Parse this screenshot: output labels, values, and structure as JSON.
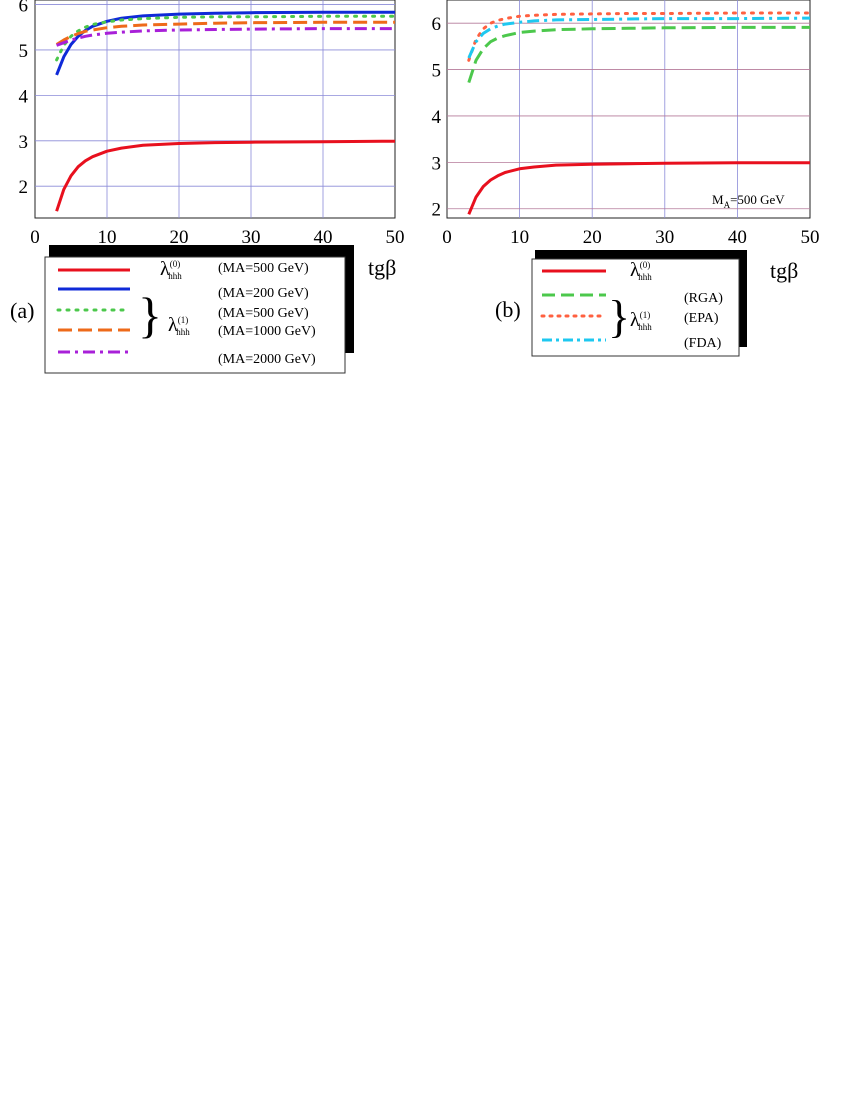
{
  "chart_data": [
    {
      "panel_label": "(a)",
      "type": "line",
      "xlabel": "tgβ",
      "xlim": [
        0,
        50
      ],
      "ylim": [
        1.3,
        6.1
      ],
      "xticks": [
        "0",
        "10",
        "20",
        "30",
        "40",
        "50"
      ],
      "yticks": [
        "2",
        "3",
        "4",
        "5",
        "6"
      ],
      "grid": true,
      "series": [
        {
          "name": "λhhh(0) (MA=500 GeV)",
          "color": "#e8101e",
          "dash": "solid",
          "x": [
            3,
            4,
            5,
            6,
            7,
            8,
            10,
            12,
            15,
            20,
            25,
            30,
            40,
            50
          ],
          "y": [
            1.45,
            1.93,
            2.23,
            2.43,
            2.56,
            2.65,
            2.77,
            2.84,
            2.9,
            2.94,
            2.96,
            2.97,
            2.98,
            2.99
          ]
        },
        {
          "name": "λhhh(1) (MA=200 GeV)",
          "color": "#0f2ad8",
          "dash": "solid",
          "x": [
            3,
            4,
            5,
            6,
            7,
            8,
            10,
            12,
            15,
            20,
            25,
            30,
            40,
            50
          ],
          "y": [
            4.45,
            4.85,
            5.12,
            5.3,
            5.43,
            5.52,
            5.63,
            5.7,
            5.75,
            5.79,
            5.81,
            5.82,
            5.83,
            5.83
          ]
        },
        {
          "name": "λhhh(1) (MA=500 GeV)",
          "color": "#4cc84c",
          "dash": "dot",
          "x": [
            3,
            4,
            5,
            6,
            7,
            8,
            10,
            12,
            15,
            20,
            25,
            30,
            40,
            50
          ],
          "y": [
            4.78,
            5.1,
            5.3,
            5.42,
            5.5,
            5.56,
            5.62,
            5.66,
            5.69,
            5.72,
            5.73,
            5.73,
            5.74,
            5.74
          ]
        },
        {
          "name": "λhhh(1) (MA=1000 GeV)",
          "color": "#ee6a1a",
          "dash": "dash",
          "x": [
            3,
            4,
            5,
            6,
            7,
            8,
            10,
            12,
            15,
            20,
            25,
            30,
            40,
            50
          ],
          "y": [
            5.12,
            5.22,
            5.3,
            5.36,
            5.41,
            5.44,
            5.49,
            5.52,
            5.55,
            5.57,
            5.59,
            5.6,
            5.61,
            5.61
          ]
        },
        {
          "name": "λhhh(1) (MA=2000 GeV)",
          "color": "#a820d8",
          "dash": "dashdot",
          "x": [
            3,
            4,
            5,
            6,
            7,
            8,
            10,
            12,
            15,
            20,
            25,
            30,
            40,
            50
          ],
          "y": [
            5.1,
            5.16,
            5.22,
            5.26,
            5.3,
            5.33,
            5.37,
            5.39,
            5.42,
            5.44,
            5.45,
            5.46,
            5.47,
            5.47
          ]
        }
      ]
    },
    {
      "panel_label": "(b)",
      "type": "line",
      "xlabel": "tgβ",
      "xlim": [
        0,
        50
      ],
      "ylim": [
        1.8,
        6.5
      ],
      "xticks": [
        "0",
        "10",
        "20",
        "30",
        "40",
        "50"
      ],
      "yticks": [
        "2",
        "3",
        "4",
        "5",
        "6"
      ],
      "grid": true,
      "annotation": "MA=500 GeV",
      "series": [
        {
          "name": "λhhh(0)",
          "color": "#e8101e",
          "dash": "solid",
          "x": [
            3,
            4,
            5,
            6,
            7,
            8,
            10,
            12,
            15,
            20,
            25,
            30,
            40,
            50
          ],
          "y": [
            1.88,
            2.25,
            2.48,
            2.62,
            2.71,
            2.78,
            2.86,
            2.9,
            2.94,
            2.96,
            2.97,
            2.98,
            2.99,
            2.99
          ]
        },
        {
          "name": "λhhh(1) (RGA)",
          "color": "#4cc84c",
          "dash": "dash",
          "x": [
            3,
            4,
            5,
            6,
            7,
            8,
            10,
            12,
            15,
            20,
            25,
            30,
            40,
            50
          ],
          "y": [
            4.72,
            5.2,
            5.45,
            5.6,
            5.68,
            5.73,
            5.8,
            5.83,
            5.86,
            5.88,
            5.89,
            5.9,
            5.91,
            5.91
          ]
        },
        {
          "name": "λhhh(1) (EPA)",
          "color": "#ff6040",
          "dash": "dot",
          "x": [
            3,
            4,
            5,
            6,
            7,
            8,
            10,
            12,
            15,
            20,
            25,
            30,
            40,
            50
          ],
          "y": [
            5.2,
            5.65,
            5.88,
            6.0,
            6.06,
            6.1,
            6.15,
            6.17,
            6.19,
            6.2,
            6.21,
            6.21,
            6.22,
            6.22
          ]
        },
        {
          "name": "λhhh(1) (FDA)",
          "color": "#1ec8f0",
          "dash": "dashdot",
          "x": [
            3,
            4,
            5,
            6,
            7,
            8,
            10,
            12,
            15,
            20,
            25,
            30,
            40,
            50
          ],
          "y": [
            5.25,
            5.6,
            5.78,
            5.88,
            5.94,
            5.98,
            6.02,
            6.05,
            6.07,
            6.08,
            6.09,
            6.1,
            6.1,
            6.11
          ]
        }
      ]
    }
  ],
  "legend_a": {
    "panel_tag": "(a)",
    "lambda0": "λ",
    "lambda0_sub": "hhh",
    "lambda0_sup": "(0)",
    "lambda1": "λ",
    "lambda1_sub": "hhh",
    "lambda1_sup": "(1)",
    "notes": [
      "(MA=500 GeV)",
      "(MA=200 GeV)",
      "(MA=500 GeV)",
      "(MA=1000 GeV)",
      "(MA=2000 GeV)"
    ]
  },
  "legend_b": {
    "panel_tag": "(b)",
    "lambda0": "λ",
    "lambda0_sub": "hhh",
    "lambda0_sup": "(0)",
    "lambda1": "λ",
    "lambda1_sub": "hhh",
    "lambda1_sup": "(1)",
    "notes": [
      "(RGA)",
      "(EPA)",
      "(FDA)"
    ]
  }
}
